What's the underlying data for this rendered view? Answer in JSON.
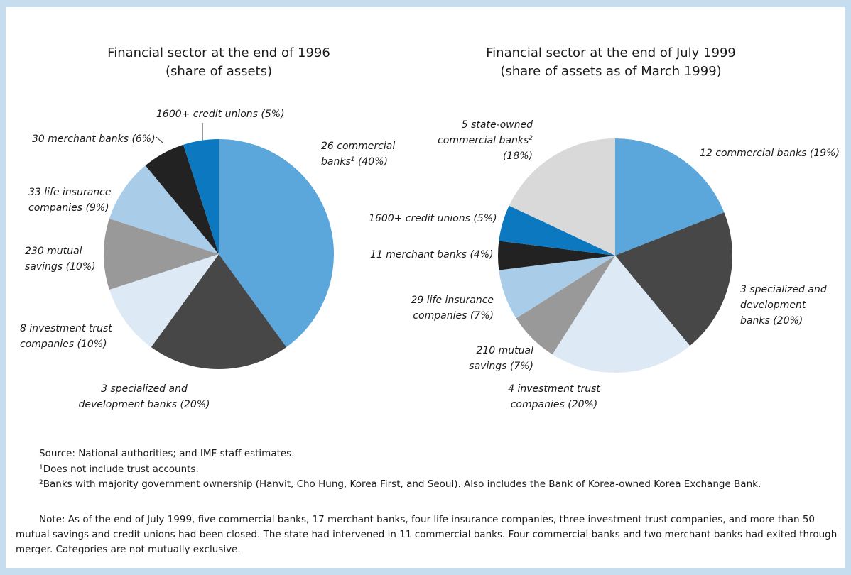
{
  "chart_data": [
    {
      "type": "pie",
      "title": "Financial sector at the end of 1996",
      "subtitle": "(share of assets)",
      "categories": [
        "26 commercial banks",
        "3 specialized and development banks",
        "8 investment trust companies",
        "230 mutual savings",
        "33 life insurance companies",
        "30 merchant banks",
        "1600+ credit unions"
      ],
      "label_notes": [
        "1",
        null,
        null,
        null,
        null,
        null,
        null
      ],
      "values": [
        40,
        20,
        10,
        10,
        9,
        6,
        5
      ],
      "value_labels": [
        "(40%)",
        "(20%)",
        "(10%)",
        "(10%)",
        "(9%)",
        "(6%)",
        "(5%)"
      ],
      "colors": [
        "#5ba6da",
        "#474747",
        "#ddeaf6",
        "#999999",
        "#a9cce9",
        "#222222",
        "#0b78c0"
      ]
    },
    {
      "type": "pie",
      "title": "Financial sector at the end of July 1999",
      "subtitle": "(share of assets as of March 1999)",
      "categories": [
        "12 commercial banks",
        "3 specialized and development banks",
        "4 investment trust companies",
        "210 mutual savings",
        "29 life insurance companies",
        "11 merchant banks",
        "1600+ credit unions",
        "5 state-owned commercial banks"
      ],
      "label_notes": [
        null,
        null,
        null,
        null,
        null,
        null,
        null,
        "2"
      ],
      "values": [
        19,
        20,
        20,
        7,
        7,
        4,
        5,
        18
      ],
      "value_labels": [
        "(19%)",
        "(20%)",
        "(20%)",
        "(7%)",
        "(7%)",
        "(4%)",
        "(5%)",
        "(18%)"
      ],
      "colors": [
        "#5ba6da",
        "#474747",
        "#ddeaf6",
        "#999999",
        "#a9cce9",
        "#222222",
        "#0b78c0",
        "#d9d9d9"
      ]
    }
  ],
  "source": "Source:  National authorities; and IMF staff estimates.",
  "footnotes": [
    {
      "marker": "1",
      "text": "Does not include trust accounts."
    },
    {
      "marker": "2",
      "text": "Banks with majority government ownership (Hanvit, Cho Hung, Korea First, and Seoul). Also includes the Bank of Korea-owned Korea Exchange Bank."
    }
  ],
  "note": "Note:  As of the end of July 1999, five commercial banks, 17 merchant banks, four life insurance companies, three investment trust companies, and more than 50 mutual savings and credit unions had been closed. The state had intervened in 11 commercial banks. Four commercial banks and two merchant banks had exited through merger. Categories are not mutually exclusive."
}
